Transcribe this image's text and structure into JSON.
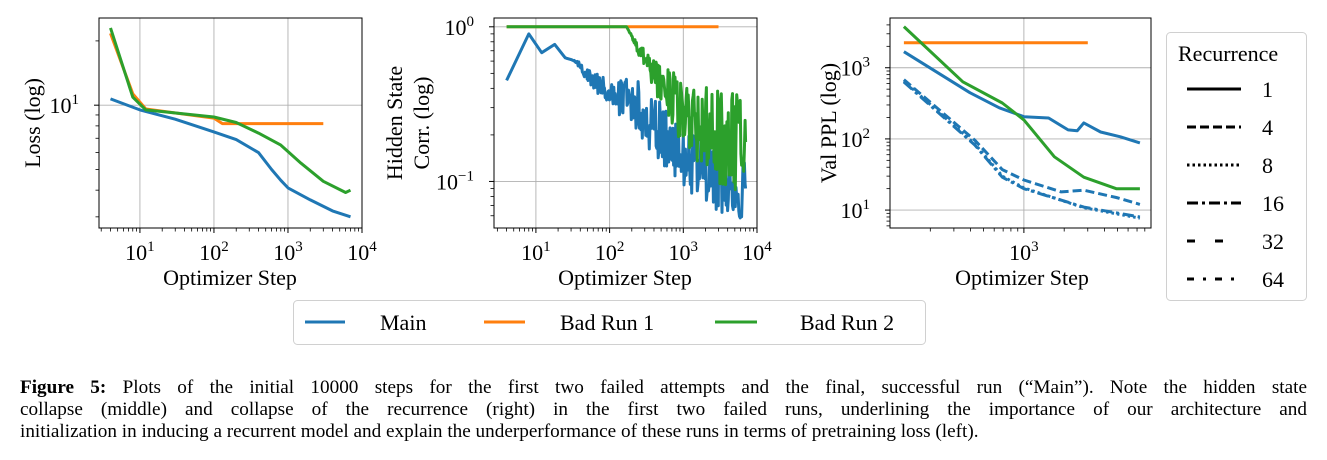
{
  "chart_data": [
    {
      "type": "line",
      "title": "",
      "xlabel": "Optimizer Step",
      "ylabel": [
        "Loss (log)"
      ],
      "xscale": "log",
      "yscale": "log",
      "xlim": [
        2.8,
        10000
      ],
      "ylim": [
        2.66,
        25.6
      ],
      "xticks": [
        10,
        100,
        1000,
        10000
      ],
      "yticks": [
        10
      ],
      "grid": true,
      "series": [
        {
          "name": "Main",
          "color": "#1f77b4",
          "x": [
            4,
            10,
            30,
            100,
            200,
            400,
            600,
            800,
            1000,
            2000,
            4000,
            7000
          ],
          "y": [
            10.7,
            9.5,
            8.6,
            7.5,
            6.9,
            6.0,
            5.0,
            4.45,
            4.1,
            3.6,
            3.2,
            3.0
          ]
        },
        {
          "name": "Bad Run 1",
          "color": "#ff7f0e",
          "x": [
            4,
            8,
            12,
            100,
            130,
            3000
          ],
          "y": [
            21.7,
            11.3,
            9.6,
            8.7,
            8.2,
            8.2
          ]
        },
        {
          "name": "Bad Run 2",
          "color": "#2ca02c",
          "x": [
            4,
            8,
            12,
            100,
            200,
            400,
            800,
            1500,
            3000,
            6000,
            7000
          ],
          "y": [
            23,
            10.9,
            9.5,
            8.8,
            8.3,
            7.4,
            6.5,
            5.35,
            4.4,
            3.9,
            4.0
          ]
        }
      ]
    },
    {
      "type": "line",
      "title": "",
      "xlabel": "Optimizer Step",
      "ylabel": [
        "Hidden State",
        "Corr. (log)"
      ],
      "xscale": "log",
      "yscale": "log",
      "xlim": [
        2.7,
        10000
      ],
      "ylim": [
        0.05,
        1.14
      ],
      "xticks": [
        10,
        100,
        1000,
        10000
      ],
      "yticks": [
        0.1,
        1
      ],
      "grid": true,
      "series": [
        {
          "name": "Main",
          "color": "#1f77b4",
          "x": [
            4,
            8,
            12,
            18,
            25,
            35,
            50,
            70,
            100,
            200,
            400,
            1000,
            3000,
            7000
          ],
          "y": [
            0.45,
            0.9,
            0.68,
            0.77,
            0.63,
            0.6,
            0.48,
            0.43,
            0.35,
            0.34,
            0.23,
            0.145,
            0.1,
            0.09
          ],
          "noise_from": 30,
          "noise_log10": 0.2
        },
        {
          "name": "Bad Run 1",
          "color": "#ff7f0e",
          "x": [
            4,
            3000
          ],
          "y": [
            1,
            1
          ]
        },
        {
          "name": "Bad Run 2",
          "color": "#2ca02c",
          "x": [
            4,
            170,
            250,
            400,
            1000,
            3000,
            7000
          ],
          "y": [
            1,
            1,
            0.71,
            0.48,
            0.28,
            0.19,
            0.18
          ],
          "noise_from": 180,
          "noise_log10": 0.32
        }
      ]
    },
    {
      "type": "line",
      "title": "",
      "xlabel": "Optimizer Step",
      "ylabel": [
        "Val PPL (log)"
      ],
      "xscale": "log",
      "yscale": "log",
      "xlim": [
        100,
        8900
      ],
      "ylim": [
        5.6,
        5000
      ],
      "xticks": [
        1000
      ],
      "yticks": [
        10,
        100,
        1000
      ],
      "grid": true,
      "series": [
        {
          "name": "Main",
          "recurrence": 1,
          "color": "#1f77b4",
          "x": [
            127,
            395,
            655,
            1000,
            1530,
            2140,
            2500,
            2800,
            3740,
            5260,
            7350
          ],
          "y": [
            1680,
            446,
            274,
            205,
            197,
            134,
            130,
            168,
            125,
            107,
            88
          ]
        },
        {
          "name": "Main",
          "recurrence": 4,
          "color": "#1f77b4",
          "x": [
            127,
            430,
            690,
            1000,
            1900,
            2800,
            4900,
            7350
          ],
          "y": [
            680,
            96,
            37,
            26.5,
            18,
            19,
            15,
            12
          ]
        },
        {
          "name": "Main",
          "recurrence": 8,
          "color": "#1f77b4",
          "x": [
            127,
            430,
            690,
            1000,
            2800,
            7350
          ],
          "y": [
            650,
            85,
            30,
            20.5,
            10.8,
            7.7
          ]
        },
        {
          "name": "Main",
          "recurrence": 16,
          "color": "#1f77b4",
          "x": [
            127,
            430,
            690,
            1000,
            2800,
            7350
          ],
          "y": [
            630,
            82,
            29,
            20,
            11,
            8
          ]
        },
        {
          "name": "Bad Run 1",
          "recurrence": 1,
          "color": "#ff7f0e",
          "x": [
            127,
            3000
          ],
          "y": [
            2250,
            2250
          ]
        },
        {
          "name": "Bad Run 2",
          "recurrence": 1,
          "color": "#2ca02c",
          "x": [
            127,
            350,
            690,
            1000,
            1690,
            2800,
            4900,
            7350
          ],
          "y": [
            3780,
            635,
            320,
            185,
            56,
            29,
            20,
            20
          ]
        }
      ]
    }
  ],
  "legend": {
    "entries": [
      {
        "label": "Main",
        "color": "#1f77b4"
      },
      {
        "label": "Bad Run 1",
        "color": "#ff7f0e"
      },
      {
        "label": "Bad Run 2",
        "color": "#2ca02c"
      }
    ],
    "placement": "bottom-center"
  },
  "recurrence_legend": {
    "title": "Recurrence",
    "entries": [
      {
        "label": "1",
        "style": "solid"
      },
      {
        "label": "4",
        "style": "dashed"
      },
      {
        "label": "8",
        "style": "dotted"
      },
      {
        "label": "16",
        "style": "dash-dot"
      },
      {
        "label": "32",
        "style": "long-dash-gap"
      },
      {
        "label": "64",
        "style": "dash-dot-sparse"
      }
    ],
    "placement": "right"
  },
  "caption": {
    "label": "Figure 5:",
    "lines": [
      " Plots of the initial 10000 steps for the first two failed attempts and the final, successful run (“Main”). Note the hidden state",
      "collapse (middle) and collapse of the recurrence (right) in the first two failed runs, underlining the importance of our architecture and",
      "initialization in inducing a recurrent model and explain the underperformance of these runs in terms of pretraining loss (left)."
    ]
  }
}
